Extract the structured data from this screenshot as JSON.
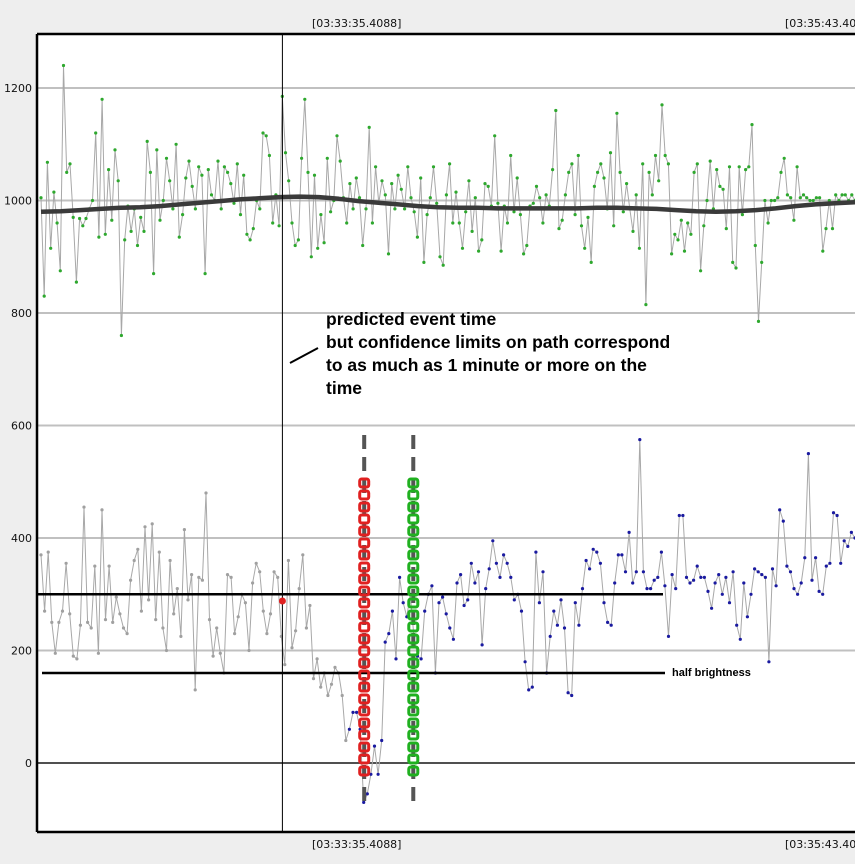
{
  "chart_data": {
    "type": "line",
    "title": "",
    "xlabel": "",
    "ylabel": "",
    "ylim": [
      -75,
      1290
    ],
    "y_ticks": [
      0,
      200,
      400,
      600,
      800,
      1000,
      1200
    ],
    "y_tick_labels": [
      "0",
      "200",
      "400",
      "600",
      "800",
      "1000",
      "1200"
    ],
    "grid": true,
    "time_labels": {
      "top": [
        "[03:33:35.4088]",
        "[03:35:43.40"
      ],
      "bottom": [
        "[03:33:35.4088]",
        "[03:35:43.40"
      ]
    },
    "colors": {
      "comparison_points": "#2ea82e",
      "target_points_before": "#a0a0a0",
      "target_points_after": "#1a1aa0",
      "trace_line": "#a8a8a8",
      "smoothed_line": "#3a3a3a",
      "event_marker": "#e02020",
      "red_band": "#e02020",
      "green_band": "#20b020",
      "gridline": "#c0c0c0",
      "background": "#ffffff"
    },
    "series": [
      {
        "kind": "comparison",
        "values": [
          1005,
          830,
          1068,
          915,
          1015,
          960,
          875,
          1240,
          1050,
          1065,
          970,
          855,
          968,
          955,
          968,
          985,
          1000,
          1120,
          935,
          1180,
          940,
          1055,
          965,
          1090,
          1035,
          760,
          930,
          990,
          945,
          985,
          920,
          970,
          945,
          1105,
          1050,
          870,
          1090,
          965,
          1000,
          1075,
          1035,
          985,
          1100,
          935,
          975,
          1040,
          1070,
          1025,
          985,
          1060,
          1045,
          870,
          1055,
          1010,
          1000,
          1070,
          985,
          1060,
          1050,
          1030,
          995,
          1065,
          975,
          1045,
          940,
          930,
          950,
          1000,
          985,
          1120,
          1115,
          1080,
          960,
          1010,
          955,
          1185,
          1085,
          1035,
          960,
          920,
          930,
          1075,
          1180,
          1050,
          900,
          1045,
          915,
          975,
          925,
          1075,
          980,
          1000,
          1115,
          1070,
          1005,
          960,
          1030,
          985,
          1040,
          1005,
          920,
          985,
          1130,
          960,
          1060,
          995,
          1035,
          1010,
          905,
          1030,
          985,
          1045,
          1020,
          985,
          1060,
          1005,
          980,
          935,
          1040,
          890,
          975,
          1005,
          1060,
          995,
          900,
          885,
          1010,
          1065,
          960,
          1015,
          960,
          915,
          980,
          1035,
          945,
          1005,
          910,
          930,
          1030,
          1025,
          990,
          1115,
          995,
          910,
          990,
          960,
          1080,
          980,
          1040,
          975,
          905,
          920,
          990,
          995,
          1025,
          1005,
          960,
          1010,
          990,
          1055,
          1160,
          950,
          965,
          1010,
          1050,
          1065,
          975,
          1080,
          955,
          915,
          970,
          890,
          1025,
          1050,
          1065,
          1040,
          985,
          1085,
          955,
          1155,
          1050,
          980,
          1030,
          985,
          945,
          1010,
          915,
          1065,
          815,
          1050,
          1010,
          1080,
          1035,
          1170,
          1080,
          1065,
          905,
          940,
          930,
          965,
          910,
          960,
          940,
          1050,
          1065,
          875,
          955,
          1000,
          1070,
          985,
          1055,
          1025,
          1020,
          950,
          1060,
          890,
          880,
          1060,
          975,
          1055,
          1060,
          1135,
          920,
          785,
          890,
          1000,
          960,
          1000,
          1000,
          1005,
          1050,
          1075,
          1010,
          1005,
          965,
          1060,
          1005,
          1010,
          1005,
          1000,
          1000,
          1005,
          1005,
          910,
          950,
          1000,
          950,
          1010,
          1000,
          1010,
          1010,
          1000,
          1010,
          1000
        ]
      },
      {
        "kind": "target",
        "values": [
          370,
          270,
          375,
          250,
          195,
          250,
          270,
          355,
          265,
          190,
          185,
          245,
          455,
          250,
          240,
          350,
          195,
          450,
          255,
          350,
          250,
          295,
          265,
          240,
          230,
          325,
          360,
          380,
          270,
          420,
          290,
          425,
          255,
          375,
          240,
          200,
          360,
          265,
          310,
          225,
          415,
          290,
          335,
          130,
          330,
          325,
          480,
          255,
          190,
          240,
          195,
          160,
          335,
          330,
          230,
          260,
          300,
          285,
          200,
          320,
          355,
          340,
          270,
          230,
          265,
          340,
          330,
          225,
          175,
          360,
          205,
          235,
          310,
          370,
          240,
          280,
          150,
          185,
          135,
          160,
          120,
          140,
          170,
          160,
          120,
          40,
          60,
          90,
          90,
          60,
          -70,
          -55,
          -20,
          30,
          -20,
          40,
          215,
          230,
          270,
          185,
          330,
          285,
          260,
          300,
          225,
          190,
          185,
          270,
          300,
          315,
          160,
          285,
          295,
          265,
          240,
          220,
          320,
          335,
          280,
          290,
          355,
          320,
          340,
          210,
          310,
          345,
          395,
          355,
          330,
          370,
          355,
          330,
          290,
          300,
          270,
          180,
          130,
          135,
          375,
          285,
          340,
          160,
          225,
          270,
          245,
          290,
          240,
          125,
          120,
          285,
          245,
          310,
          360,
          345,
          380,
          375,
          355,
          285,
          250,
          245,
          320,
          370,
          370,
          340,
          410,
          320,
          340,
          575,
          340,
          310,
          310,
          325,
          330,
          375,
          315,
          225,
          335,
          310,
          440,
          440,
          330,
          320,
          325,
          350,
          330,
          330,
          305,
          275,
          320,
          335,
          300,
          330,
          285,
          340,
          245,
          220,
          320,
          260,
          300,
          345,
          340,
          335,
          330,
          180,
          345,
          315,
          450,
          430,
          350,
          340,
          310,
          300,
          320,
          365,
          550,
          325,
          365,
          305,
          300,
          350,
          355,
          445,
          440,
          355,
          395,
          385,
          410,
          400
        ]
      }
    ],
    "smoothed_curve": [
      980,
      981,
      983,
      985,
      987,
      988,
      990,
      993,
      996,
      999,
      1002,
      1004,
      1006,
      1007,
      1006,
      1003,
      999,
      996,
      993,
      990,
      988,
      987,
      987,
      986,
      986,
      986,
      986,
      986,
      987,
      987,
      986,
      985,
      983,
      981,
      980,
      981,
      983,
      986,
      990,
      993,
      995,
      997
    ],
    "event": {
      "predicted_time_fraction": 0.3,
      "value": 288
    },
    "full_brightness_level": 300,
    "half_brightness_level": 160,
    "confidence_band_x_fractions": [
      0.4,
      0.46
    ],
    "annotations": {
      "event_note_lines": [
        "predicted event time",
        "but confidence limits on path correspond",
        "to as much as 1 minute or more on the",
        "time"
      ],
      "half_brightness": "half brightness"
    }
  }
}
